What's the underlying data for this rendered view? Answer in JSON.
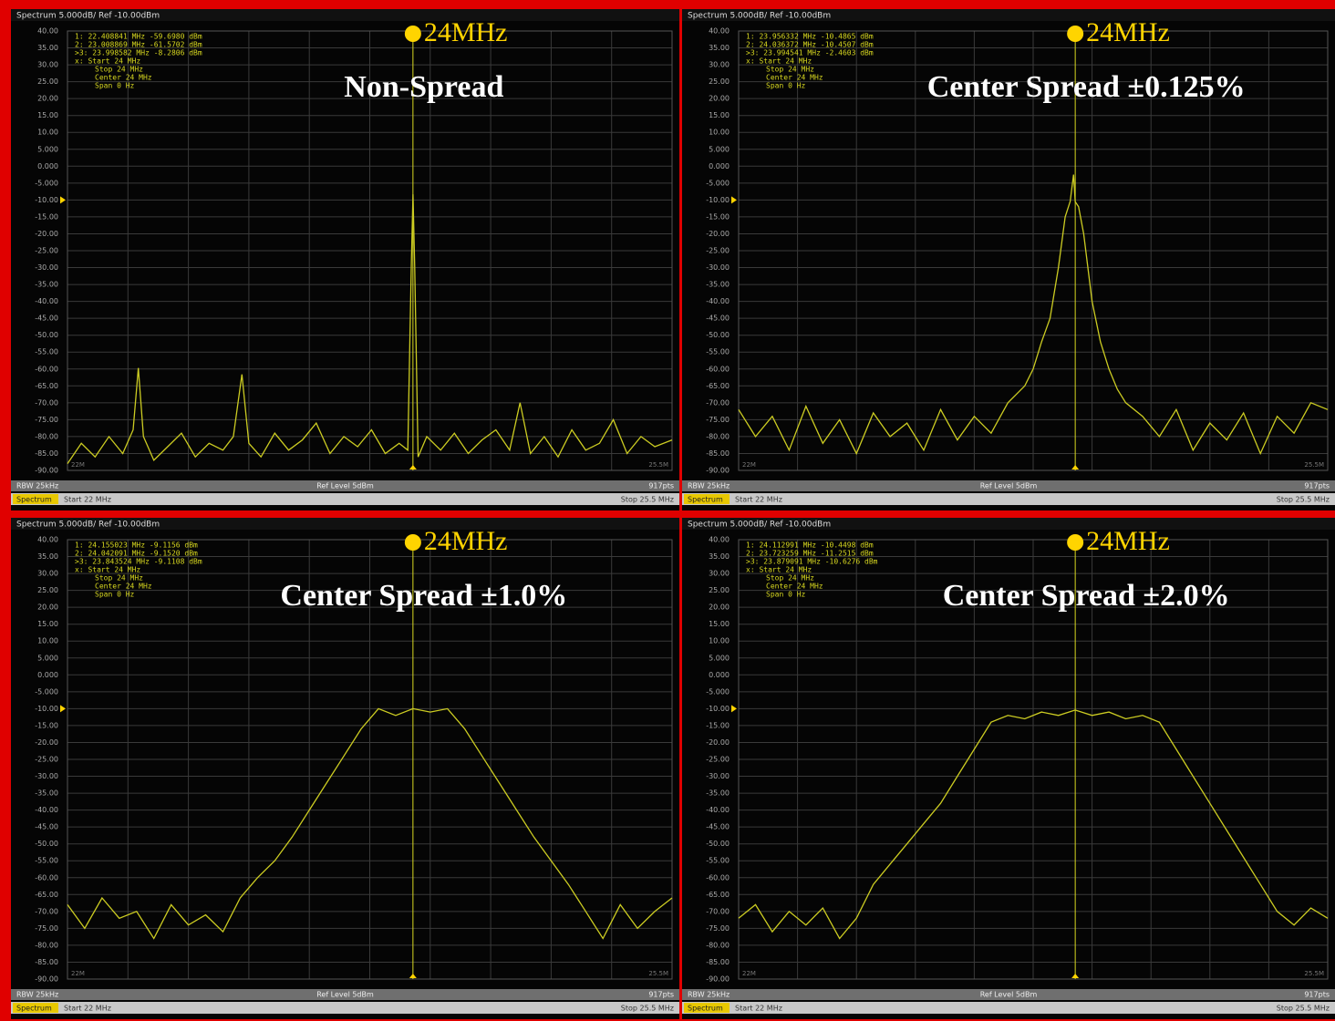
{
  "chart_data": [
    {
      "type": "line",
      "header": "Spectrum 5.000dB/ Ref -10.00dBm",
      "annotation": "24MHz",
      "center_marker": 24,
      "title": "Non-Spread",
      "marker_table": [
        "1: 22.408841 MHz  -59.6980 dBm",
        "2: 23.008869 MHz  -61.5702 dBm",
        ">3: 23.998582 MHz  -8.2806 dBm",
        "x: Start 24 MHz",
        "Stop 24 MHz",
        "Center 24 MHz",
        "Span 0 Hz"
      ],
      "footer": {
        "rbw": "RBW 25kHz",
        "ref_level": "Ref Level 5dBm",
        "points": "917pts",
        "tab": "Spectrum",
        "start": "Start 22 MHz",
        "stop": "Stop 25.5 MHz"
      },
      "color": "#cccc22",
      "grid": true,
      "xlim": [
        22,
        25.5
      ],
      "ylim": [
        -90,
        40
      ],
      "xticks": [
        {
          "value": 22,
          "label": "22M"
        },
        {
          "value": 25.5,
          "label": "25.5M"
        }
      ],
      "yticks": [
        {
          "value": 40,
          "label": "40.00"
        },
        {
          "value": 35,
          "label": "35.00"
        },
        {
          "value": 30,
          "label": "30.00"
        },
        {
          "value": 25,
          "label": "25.00"
        },
        {
          "value": 20,
          "label": "20.00"
        },
        {
          "value": 15,
          "label": "15.00"
        },
        {
          "value": 10,
          "label": "10.00"
        },
        {
          "value": 5,
          "label": "5.000"
        },
        {
          "value": 0,
          "label": "0.000"
        },
        {
          "value": -5,
          "label": "-5.000"
        },
        {
          "value": -10,
          "label": "-10.00"
        },
        {
          "value": -15,
          "label": "-15.00"
        },
        {
          "value": -20,
          "label": "-20.00"
        },
        {
          "value": -25,
          "label": "-25.00"
        },
        {
          "value": -30,
          "label": "-30.00"
        },
        {
          "value": -35,
          "label": "-35.00"
        },
        {
          "value": -40,
          "label": "-40.00"
        },
        {
          "value": -45,
          "label": "-45.00"
        },
        {
          "value": -50,
          "label": "-50.00"
        },
        {
          "value": -55,
          "label": "-55.00"
        },
        {
          "value": -60,
          "label": "-60.00"
        },
        {
          "value": -65,
          "label": "-65.00"
        },
        {
          "value": -70,
          "label": "-70.00"
        },
        {
          "value": -75,
          "label": "-75.00"
        },
        {
          "value": -80,
          "label": "-80.00"
        },
        {
          "value": -85,
          "label": "-85.00"
        },
        {
          "value": -90,
          "label": "-90.00"
        }
      ],
      "x": [
        22.0,
        22.08,
        22.16,
        22.24,
        22.32,
        22.38,
        22.41,
        22.44,
        22.5,
        22.58,
        22.66,
        22.74,
        22.82,
        22.9,
        22.96,
        23.01,
        23.05,
        23.12,
        23.2,
        23.28,
        23.36,
        23.44,
        23.52,
        23.6,
        23.68,
        23.76,
        23.84,
        23.92,
        23.97,
        23.99,
        24.0,
        24.01,
        24.03,
        24.08,
        24.16,
        24.24,
        24.32,
        24.4,
        24.48,
        24.56,
        24.62,
        24.68,
        24.76,
        24.84,
        24.92,
        25.0,
        25.08,
        25.16,
        25.24,
        25.32,
        25.4,
        25.5
      ],
      "values": [
        -88,
        -82,
        -86,
        -80,
        -85,
        -78,
        -59.7,
        -80,
        -87,
        -83,
        -79,
        -86,
        -82,
        -84,
        -80,
        -61.6,
        -82,
        -86,
        -79,
        -84,
        -81,
        -76,
        -85,
        -80,
        -83,
        -78,
        -85,
        -82,
        -84,
        -30,
        -8.3,
        -30,
        -86,
        -80,
        -84,
        -79,
        -85,
        -81,
        -78,
        -84,
        -70,
        -85,
        -80,
        -86,
        -78,
        -84,
        -82,
        -75,
        -85,
        -80,
        -83,
        -81
      ]
    },
    {
      "type": "line",
      "header": "Spectrum 5.000dB/ Ref -10.00dBm",
      "annotation": "24MHz",
      "center_marker": 24,
      "title": "Center Spread ±0.125%",
      "marker_table": [
        "1: 23.956332 MHz  -10.4865 dBm",
        "2: 24.036372 MHz  -10.4507 dBm",
        ">3: 23.994541 MHz  -2.4603 dBm",
        "x: Start 24 MHz",
        "Stop 24 MHz",
        "Center 24 MHz",
        "Span 0 Hz"
      ],
      "footer": {
        "rbw": "RBW 25kHz",
        "ref_level": "Ref Level 5dBm",
        "points": "917pts",
        "tab": "Spectrum",
        "start": "Start 22 MHz",
        "stop": "Stop 25.5 MHz"
      },
      "color": "#cccc22",
      "grid": true,
      "xlim": [
        22,
        25.5
      ],
      "ylim": [
        -90,
        40
      ],
      "xticks": [
        {
          "value": 22,
          "label": "22M"
        },
        {
          "value": 25.5,
          "label": "25.5M"
        }
      ],
      "yticks": [
        {
          "value": 40,
          "label": "40.00"
        },
        {
          "value": 35,
          "label": "35.00"
        },
        {
          "value": 30,
          "label": "30.00"
        },
        {
          "value": 25,
          "label": "25.00"
        },
        {
          "value": 20,
          "label": "20.00"
        },
        {
          "value": 15,
          "label": "15.00"
        },
        {
          "value": 10,
          "label": "10.00"
        },
        {
          "value": 5,
          "label": "5.000"
        },
        {
          "value": 0,
          "label": "0.000"
        },
        {
          "value": -5,
          "label": "-5.000"
        },
        {
          "value": -10,
          "label": "-10.00"
        },
        {
          "value": -15,
          "label": "-15.00"
        },
        {
          "value": -20,
          "label": "-20.00"
        },
        {
          "value": -25,
          "label": "-25.00"
        },
        {
          "value": -30,
          "label": "-30.00"
        },
        {
          "value": -35,
          "label": "-35.00"
        },
        {
          "value": -40,
          "label": "-40.00"
        },
        {
          "value": -45,
          "label": "-45.00"
        },
        {
          "value": -50,
          "label": "-50.00"
        },
        {
          "value": -55,
          "label": "-55.00"
        },
        {
          "value": -60,
          "label": "-60.00"
        },
        {
          "value": -65,
          "label": "-65.00"
        },
        {
          "value": -70,
          "label": "-70.00"
        },
        {
          "value": -75,
          "label": "-75.00"
        },
        {
          "value": -80,
          "label": "-80.00"
        },
        {
          "value": -85,
          "label": "-85.00"
        },
        {
          "value": -90,
          "label": "-90.00"
        }
      ],
      "x": [
        22.0,
        22.1,
        22.2,
        22.3,
        22.4,
        22.5,
        22.6,
        22.7,
        22.8,
        22.9,
        23.0,
        23.1,
        23.2,
        23.3,
        23.4,
        23.5,
        23.6,
        23.7,
        23.75,
        23.8,
        23.85,
        23.9,
        23.94,
        23.97,
        23.99,
        24.0,
        24.02,
        24.05,
        24.1,
        24.15,
        24.2,
        24.25,
        24.3,
        24.4,
        24.5,
        24.6,
        24.7,
        24.8,
        24.9,
        25.0,
        25.1,
        25.2,
        25.3,
        25.4,
        25.5
      ],
      "values": [
        -72,
        -80,
        -74,
        -84,
        -71,
        -82,
        -75,
        -85,
        -73,
        -80,
        -76,
        -84,
        -72,
        -81,
        -74,
        -79,
        -70,
        -65,
        -60,
        -52,
        -45,
        -30,
        -15,
        -10.4,
        -2.5,
        -10.5,
        -12,
        -20,
        -40,
        -52,
        -60,
        -66,
        -70,
        -74,
        -80,
        -72,
        -84,
        -76,
        -81,
        -73,
        -85,
        -74,
        -79,
        -70,
        -72
      ]
    },
    {
      "type": "line",
      "header": "Spectrum 5.000dB/ Ref -10.00dBm",
      "annotation": "24MHz",
      "center_marker": 24,
      "title": "Center Spread ±1.0%",
      "marker_table": [
        "1: 24.155023 MHz  -9.1156 dBm",
        "2: 24.042091 MHz  -9.1520 dBm",
        ">3: 23.843524 MHz  -9.1108 dBm",
        "x: Start 24 MHz",
        "Stop 24 MHz",
        "Center 24 MHz",
        "Span 0 Hz"
      ],
      "footer": {
        "rbw": "RBW 25kHz",
        "ref_level": "Ref Level 5dBm",
        "points": "917pts",
        "tab": "Spectrum",
        "start": "Start 22 MHz",
        "stop": "Stop 25.5 MHz"
      },
      "color": "#cccc22",
      "grid": true,
      "xlim": [
        22,
        25.5
      ],
      "ylim": [
        -90,
        40
      ],
      "xticks": [
        {
          "value": 22,
          "label": "22M"
        },
        {
          "value": 25.5,
          "label": "25.5M"
        }
      ],
      "yticks": [
        {
          "value": 40,
          "label": "40.00"
        },
        {
          "value": 35,
          "label": "35.00"
        },
        {
          "value": 30,
          "label": "30.00"
        },
        {
          "value": 25,
          "label": "25.00"
        },
        {
          "value": 20,
          "label": "20.00"
        },
        {
          "value": 15,
          "label": "15.00"
        },
        {
          "value": 10,
          "label": "10.00"
        },
        {
          "value": 5,
          "label": "5.000"
        },
        {
          "value": 0,
          "label": "0.000"
        },
        {
          "value": -5,
          "label": "-5.000"
        },
        {
          "value": -10,
          "label": "-10.00"
        },
        {
          "value": -15,
          "label": "-15.00"
        },
        {
          "value": -20,
          "label": "-20.00"
        },
        {
          "value": -25,
          "label": "-25.00"
        },
        {
          "value": -30,
          "label": "-30.00"
        },
        {
          "value": -35,
          "label": "-35.00"
        },
        {
          "value": -40,
          "label": "-40.00"
        },
        {
          "value": -45,
          "label": "-45.00"
        },
        {
          "value": -50,
          "label": "-50.00"
        },
        {
          "value": -55,
          "label": "-55.00"
        },
        {
          "value": -60,
          "label": "-60.00"
        },
        {
          "value": -65,
          "label": "-65.00"
        },
        {
          "value": -70,
          "label": "-70.00"
        },
        {
          "value": -75,
          "label": "-75.00"
        },
        {
          "value": -80,
          "label": "-80.00"
        },
        {
          "value": -85,
          "label": "-85.00"
        },
        {
          "value": -90,
          "label": "-90.00"
        }
      ],
      "x": [
        22.0,
        22.1,
        22.2,
        22.3,
        22.4,
        22.5,
        22.6,
        22.7,
        22.8,
        22.9,
        23.0,
        23.1,
        23.2,
        23.3,
        23.4,
        23.5,
        23.6,
        23.7,
        23.8,
        23.9,
        24.0,
        24.1,
        24.2,
        24.3,
        24.4,
        24.5,
        24.6,
        24.7,
        24.8,
        24.9,
        25.0,
        25.1,
        25.2,
        25.3,
        25.4,
        25.5
      ],
      "values": [
        -68,
        -75,
        -66,
        -72,
        -70,
        -78,
        -68,
        -74,
        -71,
        -76,
        -66,
        -60,
        -55,
        -48,
        -40,
        -32,
        -24,
        -16,
        -10,
        -12,
        -10,
        -11,
        -10,
        -16,
        -24,
        -32,
        -40,
        -48,
        -55,
        -62,
        -70,
        -78,
        -68,
        -75,
        -70,
        -66
      ]
    },
    {
      "type": "line",
      "header": "Spectrum 5.000dB/ Ref -10.00dBm",
      "annotation": "24MHz",
      "center_marker": 24,
      "title": "Center Spread ±2.0%",
      "marker_table": [
        "1: 24.112991 MHz  -10.4498 dBm",
        "2: 23.723259 MHz  -11.2515 dBm",
        ">3: 23.879091 MHz  -10.6276 dBm",
        "x: Start 24 MHz",
        "Stop 24 MHz",
        "Center 24 MHz",
        "Span 0 Hz"
      ],
      "footer": {
        "rbw": "RBW 25kHz",
        "ref_level": "Ref Level 5dBm",
        "points": "917pts",
        "tab": "Spectrum",
        "start": "Start 22 MHz",
        "stop": "Stop 25.5 MHz"
      },
      "color": "#cccc22",
      "grid": true,
      "xlim": [
        22,
        25.5
      ],
      "ylim": [
        -90,
        40
      ],
      "xticks": [
        {
          "value": 22,
          "label": "22M"
        },
        {
          "value": 25.5,
          "label": "25.5M"
        }
      ],
      "yticks": [
        {
          "value": 40,
          "label": "40.00"
        },
        {
          "value": 35,
          "label": "35.00"
        },
        {
          "value": 30,
          "label": "30.00"
        },
        {
          "value": 25,
          "label": "25.00"
        },
        {
          "value": 20,
          "label": "20.00"
        },
        {
          "value": 15,
          "label": "15.00"
        },
        {
          "value": 10,
          "label": "10.00"
        },
        {
          "value": 5,
          "label": "5.000"
        },
        {
          "value": 0,
          "label": "0.000"
        },
        {
          "value": -5,
          "label": "-5.000"
        },
        {
          "value": -10,
          "label": "-10.00"
        },
        {
          "value": -15,
          "label": "-15.00"
        },
        {
          "value": -20,
          "label": "-20.00"
        },
        {
          "value": -25,
          "label": "-25.00"
        },
        {
          "value": -30,
          "label": "-30.00"
        },
        {
          "value": -35,
          "label": "-35.00"
        },
        {
          "value": -40,
          "label": "-40.00"
        },
        {
          "value": -45,
          "label": "-45.00"
        },
        {
          "value": -50,
          "label": "-50.00"
        },
        {
          "value": -55,
          "label": "-55.00"
        },
        {
          "value": -60,
          "label": "-60.00"
        },
        {
          "value": -65,
          "label": "-65.00"
        },
        {
          "value": -70,
          "label": "-70.00"
        },
        {
          "value": -75,
          "label": "-75.00"
        },
        {
          "value": -80,
          "label": "-80.00"
        },
        {
          "value": -85,
          "label": "-85.00"
        },
        {
          "value": -90,
          "label": "-90.00"
        }
      ],
      "x": [
        22.0,
        22.1,
        22.2,
        22.3,
        22.4,
        22.5,
        22.6,
        22.7,
        22.8,
        22.9,
        23.0,
        23.1,
        23.2,
        23.3,
        23.4,
        23.5,
        23.6,
        23.7,
        23.8,
        23.9,
        24.0,
        24.1,
        24.2,
        24.3,
        24.4,
        24.5,
        24.6,
        24.7,
        24.8,
        24.9,
        25.0,
        25.1,
        25.2,
        25.3,
        25.4,
        25.5
      ],
      "values": [
        -72,
        -68,
        -76,
        -70,
        -74,
        -69,
        -78,
        -72,
        -62,
        -56,
        -50,
        -44,
        -38,
        -30,
        -22,
        -14,
        -12,
        -13,
        -11,
        -12,
        -10.4,
        -12,
        -11,
        -13,
        -12,
        -14,
        -22,
        -30,
        -38,
        -46,
        -54,
        -62,
        -70,
        -74,
        -69,
        -72
      ]
    }
  ]
}
